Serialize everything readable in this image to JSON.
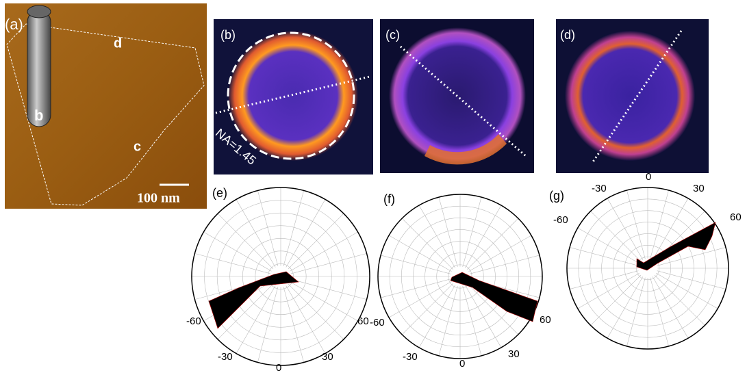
{
  "panel_a": {
    "label": "(a)",
    "markers": [
      "d",
      "b",
      "c"
    ],
    "scale_bar": "100 nm"
  },
  "panel_b": {
    "label": "(b)",
    "annotation": "NA=1.45"
  },
  "panel_c": {
    "label": "(c)"
  },
  "panel_d": {
    "label": "(d)"
  },
  "panel_e": {
    "label": "(e)",
    "angles": [
      "-60",
      "60",
      "-30",
      "30",
      "0"
    ]
  },
  "panel_f": {
    "label": "(f)",
    "angles": [
      "-60",
      "60",
      "-30",
      "30",
      "0"
    ]
  },
  "panel_g": {
    "label": "(g)",
    "angles": [
      "-60",
      "60",
      "-30",
      "30",
      "0"
    ]
  }
}
